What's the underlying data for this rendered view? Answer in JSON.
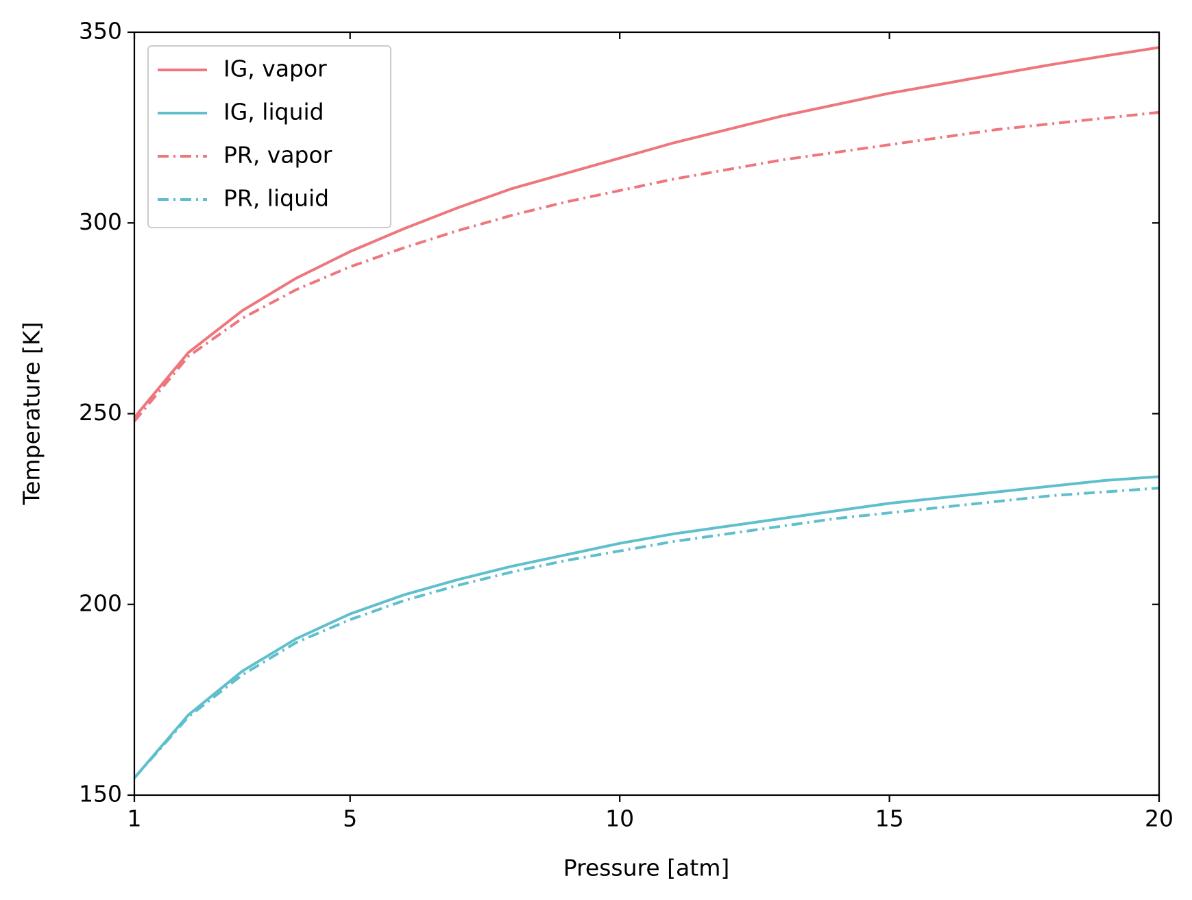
{
  "chart_data": {
    "type": "line",
    "xlabel": "Pressure [atm]",
    "ylabel": "Temperature [K]",
    "x": [
      1,
      2,
      3,
      4,
      5,
      6,
      7,
      8,
      9,
      10,
      11,
      12,
      13,
      14,
      15,
      16,
      17,
      18,
      19,
      20
    ],
    "series": [
      {
        "name": "IG, vapor",
        "color": "#ee767d",
        "linestyle": "solid",
        "values": [
          249,
          266,
          277,
          285.5,
          292.5,
          298.5,
          304,
          309,
          313,
          317,
          321,
          324.5,
          328,
          331,
          334,
          336.5,
          339,
          341.5,
          343.8,
          346
        ]
      },
      {
        "name": "IG, liquid",
        "color": "#5fbfcc",
        "linestyle": "solid",
        "values": [
          154.5,
          171,
          182.5,
          191,
          197.5,
          202.5,
          206.5,
          210,
          213,
          216,
          218.5,
          220.5,
          222.5,
          224.5,
          226.5,
          228,
          229.5,
          231,
          232.5,
          233.5
        ]
      },
      {
        "name": "PR, vapor",
        "color": "#ee767d",
        "linestyle": "dashdot",
        "values": [
          248,
          265,
          275,
          282.5,
          288.5,
          293.5,
          298,
          302,
          305.5,
          308.5,
          311.5,
          314,
          316.5,
          318.5,
          320.5,
          322.5,
          324.5,
          326,
          327.5,
          329
        ]
      },
      {
        "name": "PR, liquid",
        "color": "#5fbfcc",
        "linestyle": "dashdot",
        "values": [
          154.5,
          170.5,
          181.5,
          190,
          196,
          201,
          205,
          208.5,
          211.5,
          214,
          216.5,
          218.5,
          220.5,
          222.5,
          224,
          225.5,
          227,
          228.5,
          229.5,
          230.5
        ]
      }
    ],
    "xlim": [
      1,
      20
    ],
    "xticks": [
      1,
      5,
      10,
      15,
      20
    ],
    "ylim": [
      150,
      350
    ],
    "yticks": [
      150,
      200,
      250,
      300,
      350
    ],
    "mirror_ticks": true,
    "grid": false,
    "legend": "upper left"
  }
}
